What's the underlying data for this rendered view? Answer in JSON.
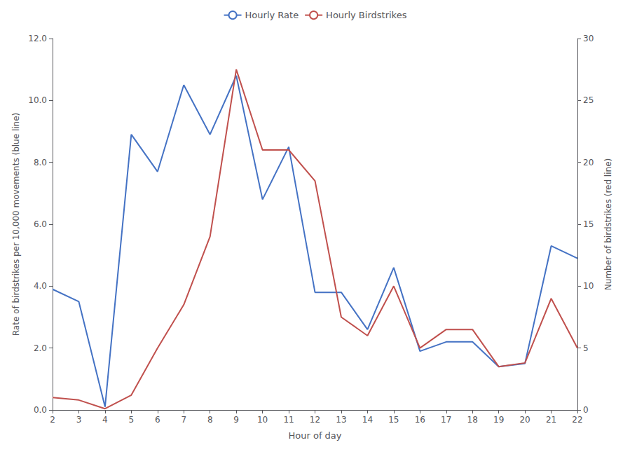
{
  "chart_data": {
    "type": "line",
    "xlabel": "Hour of day",
    "ylabel": "Rate of birdstrikes per 10,000 movements (blue line)",
    "y2label": "Number of birdstrikes (red line)",
    "x": [
      2,
      3,
      4,
      5,
      6,
      7,
      8,
      9,
      10,
      11,
      12,
      13,
      14,
      15,
      16,
      17,
      18,
      19,
      20,
      21,
      22
    ],
    "series": [
      {
        "name": "Hourly Rate",
        "color": "#4472C4",
        "values": [
          3.9,
          3.5,
          0.1,
          8.9,
          7.7,
          10.5,
          8.9,
          10.8,
          6.8,
          8.5,
          3.8,
          3.8,
          2.6,
          4.6,
          1.9,
          2.2,
          2.2,
          1.4,
          1.5,
          5.3,
          4.9
        ]
      },
      {
        "name": "Hourly Birdstrikes",
        "color": "#C0504D",
        "axis": "y2",
        "values": [
          1.0,
          0.8,
          0.1,
          1.2,
          5.0,
          8.5,
          14.0,
          27.5,
          21.0,
          21.0,
          18.5,
          7.5,
          6.0,
          10.0,
          5.0,
          6.5,
          6.5,
          3.5,
          3.8,
          9.0,
          5.0
        ]
      }
    ],
    "xlim": [
      2,
      22
    ],
    "xticks": [
      2,
      3,
      4,
      5,
      6,
      7,
      8,
      9,
      10,
      11,
      12,
      13,
      14,
      15,
      16,
      17,
      18,
      19,
      20,
      21,
      22
    ],
    "ylim": [
      0,
      12.0
    ],
    "yticks": [
      {
        "value": 0,
        "label": "0.0"
      },
      {
        "value": 2,
        "label": "2.0"
      },
      {
        "value": 4,
        "label": "4.0"
      },
      {
        "value": 6,
        "label": "6.0"
      },
      {
        "value": 8,
        "label": "8.0"
      },
      {
        "value": 10,
        "label": "10.0"
      },
      {
        "value": 12,
        "label": "12.0"
      }
    ],
    "y2lim": [
      0,
      30
    ],
    "y2ticks": [
      0,
      5,
      10,
      15,
      20,
      25,
      30
    ],
    "grid": false,
    "legend": "top"
  }
}
